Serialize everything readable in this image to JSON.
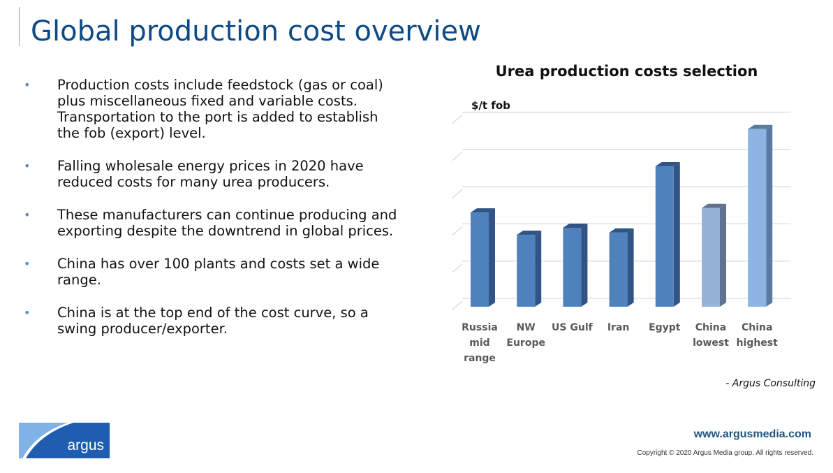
{
  "slide": {
    "title": "Global production cost overview",
    "bullets": [
      "Production costs include feedstock (gas or coal) plus miscellaneous fixed and variable costs. Transportation to the port is added to establish the fob (export) level.",
      "Falling wholesale energy prices in 2020 have reduced costs for many urea producers.",
      "These manufacturers can continue producing and exporting despite the downtrend in global prices.",
      "China has over 100 plants and costs set a wide range.",
      "China is at the top end of the cost curve, so a swing producer/exporter."
    ],
    "bullet_glyph": "•",
    "source": "- Argus Consulting",
    "footer": {
      "logo_text": "argus",
      "url": "www.argusmedia.com",
      "copyright": "Copyright © 2020 Argus Media group. All rights reserved."
    }
  },
  "chart_data": {
    "type": "bar",
    "title": "Urea production costs selection",
    "ylabel": "$/t fob",
    "xlabel": "",
    "categories": [
      "Russia mid range",
      "NW Europe",
      "US Gulf",
      "Iran",
      "Egypt",
      "China lowest",
      "China highest"
    ],
    "category_lines": [
      [
        "Russia",
        "mid",
        "range"
      ],
      [
        "NW",
        "Europe"
      ],
      [
        "US Gulf"
      ],
      [
        "Iran"
      ],
      [
        "Egypt"
      ],
      [
        "China",
        "lowest"
      ],
      [
        "China",
        "highest"
      ]
    ],
    "values": [
      2.53,
      1.93,
      2.12,
      1.99,
      3.77,
      2.65,
      4.77
    ],
    "value_units_note": "relative to unlabeled gridlines",
    "ylim": [
      0,
      5
    ],
    "grid": true,
    "colors": [
      "#4f81bd",
      "#4f81bd",
      "#4f81bd",
      "#4f81bd",
      "#4f81bd",
      "#95b3d7",
      "#8db4e2"
    ],
    "side_colors": [
      "#2f5485",
      "#2f5485",
      "#2f5485",
      "#2f5485",
      "#2f5485",
      "#5f7391",
      "#5a7aa0"
    ]
  }
}
